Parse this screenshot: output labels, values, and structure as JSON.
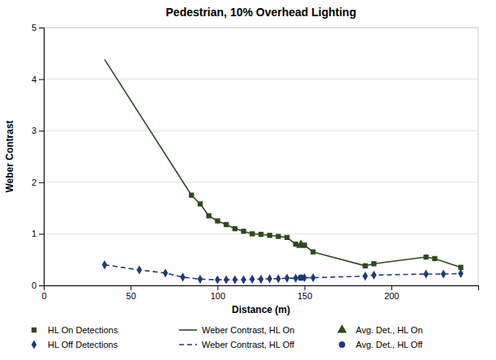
{
  "chart_data": {
    "type": "line",
    "title": "Pedestrian, 10% Overhead Lighting",
    "xlabel": "Distance (m)",
    "ylabel": "Weber Contrast",
    "xlim": [
      0,
      250
    ],
    "ylim": [
      0,
      5
    ],
    "xticks": [
      0,
      50,
      100,
      150,
      200
    ],
    "yticks": [
      0,
      1,
      2,
      3,
      4,
      5
    ],
    "grid": "y",
    "legend": "bottom",
    "series": [
      {
        "name": "HL On Detections",
        "type": "scatter",
        "marker": "square",
        "color": "#2d4a1e",
        "x": [
          85,
          90,
          95,
          100,
          105,
          110,
          115,
          120,
          125,
          130,
          135,
          140,
          145,
          150,
          155,
          185,
          190,
          220,
          225,
          240
        ],
        "values": [
          1.75,
          1.58,
          1.35,
          1.25,
          1.18,
          1.1,
          1.05,
          1.0,
          0.99,
          0.97,
          0.95,
          0.93,
          0.8,
          0.78,
          0.65,
          0.38,
          0.42,
          0.55,
          0.52,
          0.35
        ]
      },
      {
        "name": "Weber Contrast, HL On",
        "type": "line",
        "line_style": "solid",
        "color": "#2d4a1e",
        "x": [
          35,
          85,
          90,
          95,
          100,
          105,
          110,
          115,
          120,
          125,
          130,
          135,
          140,
          145,
          150,
          155,
          185,
          190,
          220,
          225,
          240
        ],
        "values": [
          4.38,
          1.75,
          1.58,
          1.35,
          1.25,
          1.18,
          1.1,
          1.05,
          1.0,
          0.99,
          0.97,
          0.95,
          0.93,
          0.8,
          0.78,
          0.65,
          0.38,
          0.42,
          0.55,
          0.52,
          0.35
        ]
      },
      {
        "name": "Avg. Det., HL On",
        "type": "scatter",
        "marker": "triangle",
        "color": "#2d4a1e",
        "x": [
          148
        ],
        "values": [
          0.78
        ]
      },
      {
        "name": "HL Off Detections",
        "type": "scatter",
        "marker": "diamond",
        "color": "#1f3a7a",
        "x": [
          35,
          55,
          70,
          80,
          90,
          100,
          105,
          110,
          115,
          120,
          125,
          130,
          135,
          140,
          145,
          150,
          155,
          185,
          190,
          220,
          230,
          240
        ],
        "values": [
          0.4,
          0.3,
          0.24,
          0.16,
          0.12,
          0.11,
          0.11,
          0.11,
          0.11,
          0.12,
          0.12,
          0.13,
          0.13,
          0.14,
          0.14,
          0.15,
          0.15,
          0.18,
          0.2,
          0.22,
          0.22,
          0.23
        ]
      },
      {
        "name": "Weber Contrast, HL Off",
        "type": "line",
        "line_style": "dashed",
        "color": "#1f3a7a",
        "x": [
          35,
          55,
          70,
          80,
          90,
          100,
          105,
          110,
          115,
          120,
          125,
          130,
          135,
          140,
          145,
          150,
          155,
          185,
          190,
          220,
          230,
          240
        ],
        "values": [
          0.4,
          0.3,
          0.24,
          0.16,
          0.12,
          0.11,
          0.11,
          0.11,
          0.11,
          0.12,
          0.12,
          0.13,
          0.13,
          0.14,
          0.14,
          0.15,
          0.15,
          0.18,
          0.2,
          0.22,
          0.22,
          0.23
        ]
      },
      {
        "name": "Avg. Det., HL Off",
        "type": "scatter",
        "marker": "circle",
        "color": "#1f3a7a",
        "x": [
          148
        ],
        "values": [
          0.15
        ]
      }
    ]
  }
}
